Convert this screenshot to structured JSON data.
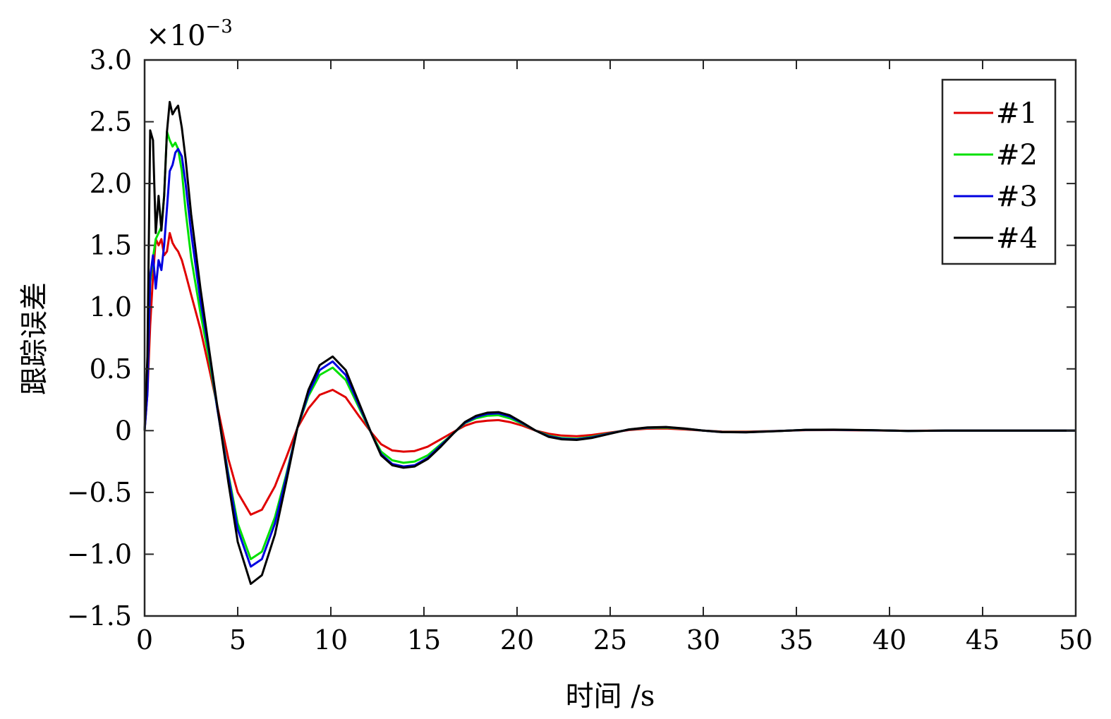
{
  "chart_data": {
    "type": "line",
    "xlabel": "时间 /s",
    "ylabel": "跟踪误差",
    "y_multiplier_label": "×10",
    "y_multiplier_exp": "−3",
    "xlim": [
      0,
      50
    ],
    "ylim": [
      -1.5,
      3.0
    ],
    "x_ticks": [
      0,
      5,
      10,
      15,
      20,
      25,
      30,
      35,
      40,
      45,
      50
    ],
    "y_ticks": [
      -1.5,
      -1.0,
      -0.5,
      0,
      0.5,
      1.0,
      1.5,
      2.0,
      2.5,
      3.0
    ],
    "x_tick_labels": [
      "0",
      "5",
      "10",
      "15",
      "20",
      "25",
      "30",
      "35",
      "40",
      "45",
      "50"
    ],
    "y_tick_labels": [
      "−1.5",
      "−1.0",
      "−0.5",
      "0",
      "0.5",
      "1.0",
      "1.5",
      "2.0",
      "2.5",
      "3.0"
    ],
    "grid": false,
    "legend_position": "top-right",
    "series": [
      {
        "name": "#1",
        "color": "#e00000",
        "x": [
          0,
          0.15,
          0.3,
          0.45,
          0.6,
          0.75,
          0.9,
          1.05,
          1.2,
          1.35,
          1.5,
          1.65,
          1.8,
          2.0,
          2.2,
          2.5,
          3.0,
          3.5,
          3.9,
          4.5,
          5.0,
          5.7,
          6.3,
          7.0,
          7.6,
          8.2,
          8.8,
          9.4,
          10.1,
          10.8,
          11.5,
          12.2,
          12.7,
          13.3,
          13.9,
          14.5,
          15.2,
          15.9,
          16.6,
          17.2,
          17.8,
          18.4,
          19.0,
          19.6,
          20.3,
          21.0,
          21.7,
          22.4,
          23.2,
          24.0,
          25.0,
          26.0,
          27.0,
          28.0,
          29.0,
          30.0,
          31.0,
          32.3,
          34.0,
          35.5,
          37.0,
          39.0,
          41.0,
          43.0,
          45.5,
          48.0,
          50.0
        ],
        "y": [
          0,
          0.3,
          0.85,
          1.25,
          1.55,
          1.5,
          1.55,
          1.42,
          1.45,
          1.6,
          1.52,
          1.48,
          1.45,
          1.38,
          1.27,
          1.1,
          0.82,
          0.48,
          0.2,
          -0.23,
          -0.5,
          -0.68,
          -0.64,
          -0.45,
          -0.22,
          0.02,
          0.18,
          0.29,
          0.33,
          0.27,
          0.12,
          -0.02,
          -0.11,
          -0.16,
          -0.17,
          -0.165,
          -0.13,
          -0.07,
          -0.01,
          0.04,
          0.07,
          0.08,
          0.085,
          0.07,
          0.04,
          0.0,
          -0.025,
          -0.04,
          -0.045,
          -0.035,
          -0.015,
          0.005,
          0.016,
          0.018,
          0.01,
          0.0,
          -0.007,
          -0.008,
          -0.002,
          0.004,
          0.005,
          0.002,
          -0.001,
          0.0,
          0.001,
          0.0,
          0.0
        ]
      },
      {
        "name": "#2",
        "color": "#00e000",
        "x": [
          0,
          0.15,
          0.3,
          0.45,
          0.6,
          0.75,
          0.9,
          1.05,
          1.2,
          1.35,
          1.5,
          1.65,
          1.8,
          2.0,
          2.2,
          2.5,
          3.0,
          3.5,
          3.9,
          4.5,
          5.0,
          5.7,
          6.3,
          7.0,
          7.6,
          8.2,
          8.8,
          9.4,
          10.1,
          10.8,
          11.5,
          12.2,
          12.7,
          13.3,
          13.9,
          14.5,
          15.2,
          15.9,
          16.6,
          17.2,
          17.8,
          18.4,
          19.0,
          19.6,
          20.3,
          21.0,
          21.7,
          22.4,
          23.2,
          24.0,
          25.0,
          26.0,
          27.0,
          28.0,
          29.0,
          30.0,
          31.0,
          32.3,
          34.0,
          35.5,
          37.0,
          39.0,
          41.0,
          43.0,
          45.5,
          48.0,
          50.0
        ],
        "y": [
          0,
          0.35,
          1.2,
          1.4,
          1.55,
          1.6,
          1.65,
          1.9,
          2.42,
          2.35,
          2.3,
          2.33,
          2.28,
          2.1,
          1.78,
          1.4,
          0.95,
          0.55,
          0.18,
          -0.35,
          -0.75,
          -1.04,
          -0.98,
          -0.7,
          -0.36,
          0.02,
          0.28,
          0.45,
          0.51,
          0.41,
          0.19,
          -0.03,
          -0.17,
          -0.24,
          -0.26,
          -0.25,
          -0.2,
          -0.11,
          -0.02,
          0.06,
          0.1,
          0.12,
          0.125,
          0.1,
          0.055,
          0.0,
          -0.04,
          -0.06,
          -0.065,
          -0.05,
          -0.02,
          0.008,
          0.022,
          0.025,
          0.015,
          0.0,
          -0.01,
          -0.012,
          -0.003,
          0.006,
          0.007,
          0.003,
          -0.002,
          0.0,
          0.001,
          0.0,
          0.0
        ]
      },
      {
        "name": "#3",
        "color": "#0000e0",
        "x": [
          0,
          0.15,
          0.3,
          0.45,
          0.6,
          0.75,
          0.9,
          1.05,
          1.2,
          1.35,
          1.5,
          1.65,
          1.8,
          2.0,
          2.2,
          2.5,
          3.0,
          3.5,
          3.9,
          4.5,
          5.0,
          5.7,
          6.3,
          7.0,
          7.6,
          8.2,
          8.8,
          9.4,
          10.1,
          10.8,
          11.5,
          12.2,
          12.7,
          13.3,
          13.9,
          14.5,
          15.2,
          15.9,
          16.6,
          17.2,
          17.8,
          18.4,
          19.0,
          19.6,
          20.3,
          21.0,
          21.7,
          22.4,
          23.2,
          24.0,
          25.0,
          26.0,
          27.0,
          28.0,
          29.0,
          30.0,
          31.0,
          32.3,
          34.0,
          35.5,
          37.0,
          39.0,
          41.0,
          43.0,
          45.5,
          48.0,
          50.0
        ],
        "y": [
          0,
          0.3,
          1.25,
          1.42,
          1.15,
          1.38,
          1.3,
          1.5,
          1.8,
          2.1,
          2.15,
          2.25,
          2.28,
          2.22,
          2.0,
          1.6,
          1.05,
          0.6,
          0.18,
          -0.37,
          -0.8,
          -1.1,
          -1.04,
          -0.75,
          -0.38,
          0.02,
          0.3,
          0.49,
          0.56,
          0.45,
          0.21,
          -0.03,
          -0.19,
          -0.27,
          -0.29,
          -0.28,
          -0.22,
          -0.12,
          -0.02,
          0.065,
          0.11,
          0.135,
          0.14,
          0.115,
          0.06,
          0.0,
          -0.045,
          -0.065,
          -0.07,
          -0.055,
          -0.022,
          0.009,
          0.024,
          0.028,
          0.016,
          0.0,
          -0.011,
          -0.013,
          -0.003,
          0.006,
          0.007,
          0.003,
          -0.002,
          0.0,
          0.001,
          0.0,
          0.0
        ]
      },
      {
        "name": "#4",
        "color": "#000000",
        "x": [
          0,
          0.15,
          0.3,
          0.45,
          0.6,
          0.75,
          0.9,
          1.05,
          1.2,
          1.35,
          1.5,
          1.65,
          1.8,
          2.0,
          2.2,
          2.5,
          3.0,
          3.5,
          3.9,
          4.5,
          5.0,
          5.7,
          6.3,
          7.0,
          7.6,
          8.2,
          8.8,
          9.4,
          10.1,
          10.8,
          11.5,
          12.2,
          12.7,
          13.3,
          13.9,
          14.5,
          15.2,
          15.9,
          16.6,
          17.2,
          17.8,
          18.4,
          19.0,
          19.6,
          20.3,
          21.0,
          21.7,
          22.4,
          23.2,
          24.0,
          25.0,
          26.0,
          27.0,
          28.0,
          29.0,
          30.0,
          31.0,
          32.3,
          34.0,
          35.5,
          37.0,
          39.0,
          41.0,
          43.0,
          45.5,
          48.0,
          50.0
        ],
        "y": [
          0,
          0.6,
          2.43,
          2.35,
          1.6,
          1.9,
          1.62,
          1.9,
          2.42,
          2.66,
          2.56,
          2.6,
          2.63,
          2.45,
          2.2,
          1.75,
          1.15,
          0.62,
          0.2,
          -0.42,
          -0.9,
          -1.24,
          -1.17,
          -0.84,
          -0.42,
          0.02,
          0.33,
          0.53,
          0.6,
          0.49,
          0.23,
          -0.03,
          -0.2,
          -0.28,
          -0.3,
          -0.29,
          -0.23,
          -0.13,
          -0.02,
          0.07,
          0.12,
          0.145,
          0.15,
          0.125,
          0.065,
          0.0,
          -0.05,
          -0.07,
          -0.075,
          -0.06,
          -0.025,
          0.01,
          0.026,
          0.03,
          0.018,
          0.0,
          -0.012,
          -0.014,
          -0.004,
          0.007,
          0.008,
          0.004,
          -0.002,
          0.0,
          0.001,
          0.0,
          0.0
        ]
      }
    ]
  }
}
